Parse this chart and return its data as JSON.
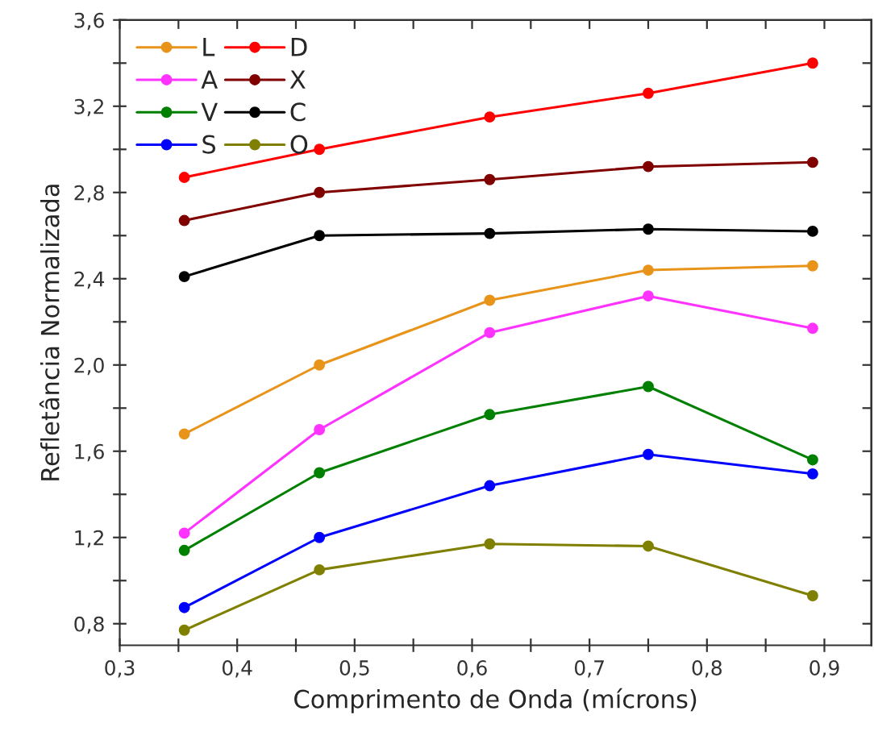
{
  "chart_data": {
    "type": "line",
    "xlabel": "Comprimento de Onda (mícrons)",
    "ylabel": "Refletância Normalizada",
    "x": [
      0.355,
      0.47,
      0.615,
      0.75,
      0.89
    ],
    "series": [
      {
        "name": "L",
        "color": "#e8941a",
        "values": [
          1.68,
          2.0,
          2.3,
          2.44,
          2.46
        ]
      },
      {
        "name": "D",
        "color": "#ff0000",
        "values": [
          2.87,
          3.0,
          3.15,
          3.26,
          3.4
        ]
      },
      {
        "name": "A",
        "color": "#ff33ff",
        "values": [
          1.22,
          1.7,
          2.15,
          2.32,
          2.17
        ]
      },
      {
        "name": "X",
        "color": "#800000",
        "values": [
          2.67,
          2.8,
          2.86,
          2.92,
          2.94
        ]
      },
      {
        "name": "V",
        "color": "#008000",
        "values": [
          1.14,
          1.5,
          1.77,
          1.9,
          1.56
        ]
      },
      {
        "name": "C",
        "color": "#000000",
        "values": [
          2.41,
          2.6,
          2.61,
          2.63,
          2.62
        ]
      },
      {
        "name": "S",
        "color": "#0000ff",
        "values": [
          0.875,
          1.2,
          1.44,
          1.585,
          1.495
        ]
      },
      {
        "name": "O",
        "color": "#808000",
        "values": [
          0.77,
          1.05,
          1.17,
          1.16,
          0.93
        ]
      }
    ],
    "xlim": [
      0.3,
      0.94
    ],
    "ylim": [
      0.7,
      3.6
    ],
    "xticks": [
      {
        "value": 0.3,
        "label": "0,3"
      },
      {
        "value": 0.35,
        "label": null
      },
      {
        "value": 0.4,
        "label": "0,4"
      },
      {
        "value": 0.45,
        "label": null
      },
      {
        "value": 0.5,
        "label": "0,5"
      },
      {
        "value": 0.55,
        "label": null
      },
      {
        "value": 0.6,
        "label": "0,6"
      },
      {
        "value": 0.65,
        "label": null
      },
      {
        "value": 0.7,
        "label": "0,7"
      },
      {
        "value": 0.75,
        "label": null
      },
      {
        "value": 0.8,
        "label": "0,8"
      },
      {
        "value": 0.85,
        "label": null
      },
      {
        "value": 0.9,
        "label": "0,9"
      }
    ],
    "yticks": [
      {
        "value": 0.8,
        "label": "0,8"
      },
      {
        "value": 1.0,
        "label": null
      },
      {
        "value": 1.2,
        "label": "1,2"
      },
      {
        "value": 1.4,
        "label": null
      },
      {
        "value": 1.6,
        "label": "1,6"
      },
      {
        "value": 1.8,
        "label": null
      },
      {
        "value": 2.0,
        "label": "2,0"
      },
      {
        "value": 2.2,
        "label": null
      },
      {
        "value": 2.4,
        "label": "2,4"
      },
      {
        "value": 2.6,
        "label": null
      },
      {
        "value": 2.8,
        "label": "2,8"
      },
      {
        "value": 3.0,
        "label": null
      },
      {
        "value": 3.2,
        "label": "3,2"
      },
      {
        "value": 3.4,
        "label": null
      },
      {
        "value": 3.6,
        "label": "3,6"
      }
    ],
    "grid": false,
    "legend": "top left",
    "marker": "circle",
    "line_style": "solid"
  }
}
